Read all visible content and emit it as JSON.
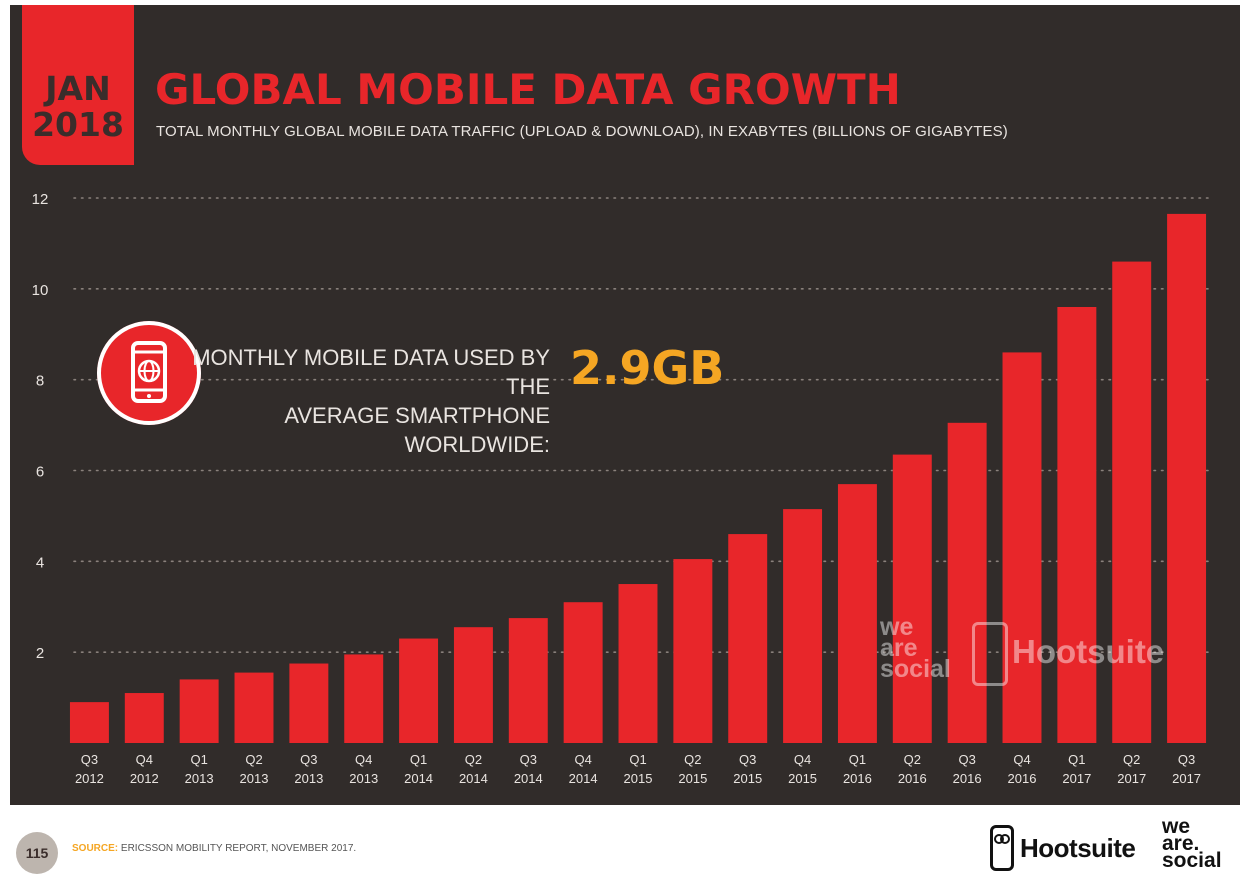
{
  "header": {
    "date_month": "JAN",
    "date_year": "2018",
    "title": "GLOBAL MOBILE DATA GROWTH",
    "subtitle": "TOTAL MONTHLY GLOBAL MOBILE DATA TRAFFIC (UPLOAD & DOWNLOAD), IN EXABYTES (BILLIONS OF GIGABYTES)"
  },
  "callout": {
    "icon": "smartphone-globe-icon",
    "label_line1": "MONTHLY MOBILE DATA USED BY THE",
    "label_line2": "AVERAGE SMARTPHONE WORLDWIDE:",
    "value": "2.9GB"
  },
  "watermark": {
    "wearesocial_lines": [
      "we",
      "are",
      "social"
    ],
    "hootsuite": "Hootsuite"
  },
  "footer": {
    "page_number": "115",
    "source_label": "SOURCE:",
    "source_text": "ERICSSON MOBILITY REPORT, NOVEMBER 2017.",
    "hootsuite_logo": "Hootsuite",
    "wearesocial_logo_lines": [
      "we",
      "are.",
      "social"
    ]
  },
  "colors": {
    "background": "#312c2a",
    "bar": "#e8262a",
    "accent": "#f5a623",
    "text": "#e9e4e0"
  },
  "chart_data": {
    "type": "bar",
    "title": "GLOBAL MOBILE DATA GROWTH",
    "subtitle": "TOTAL MONTHLY GLOBAL MOBILE DATA TRAFFIC (UPLOAD & DOWNLOAD), IN EXABYTES (BILLIONS OF GIGABYTES)",
    "xlabel": "",
    "ylabel": "",
    "ylim": [
      0,
      12
    ],
    "yticks": [
      2,
      4,
      6,
      8,
      10,
      12
    ],
    "grid": true,
    "legend": "none",
    "categories": [
      [
        "Q3",
        "2012"
      ],
      [
        "Q4",
        "2012"
      ],
      [
        "Q1",
        "2013"
      ],
      [
        "Q2",
        "2013"
      ],
      [
        "Q3",
        "2013"
      ],
      [
        "Q4",
        "2013"
      ],
      [
        "Q1",
        "2014"
      ],
      [
        "Q2",
        "2014"
      ],
      [
        "Q3",
        "2014"
      ],
      [
        "Q4",
        "2014"
      ],
      [
        "Q1",
        "2015"
      ],
      [
        "Q2",
        "2015"
      ],
      [
        "Q3",
        "2015"
      ],
      [
        "Q4",
        "2015"
      ],
      [
        "Q1",
        "2016"
      ],
      [
        "Q2",
        "2016"
      ],
      [
        "Q3",
        "2016"
      ],
      [
        "Q4",
        "2016"
      ],
      [
        "Q1",
        "2017"
      ],
      [
        "Q2",
        "2017"
      ],
      [
        "Q3",
        "2017"
      ]
    ],
    "values": [
      0.9,
      1.1,
      1.4,
      1.55,
      1.75,
      1.95,
      2.3,
      2.55,
      2.75,
      3.1,
      3.5,
      4.05,
      4.6,
      5.15,
      5.7,
      6.35,
      7.05,
      8.6,
      9.6,
      10.6,
      11.65
    ]
  }
}
